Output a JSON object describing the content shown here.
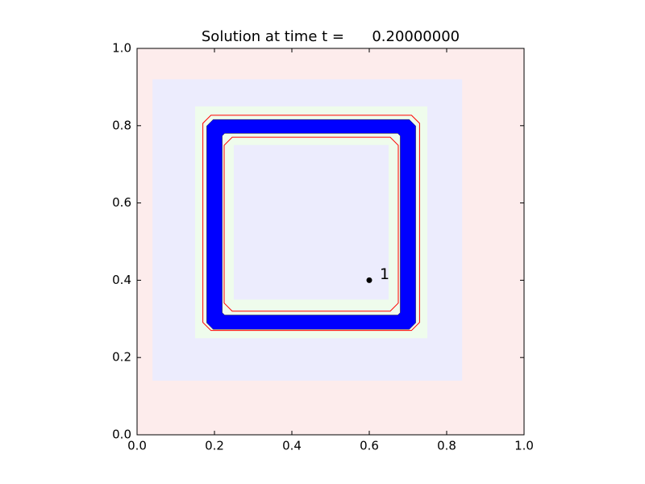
{
  "chart_data": {
    "type": "patches",
    "title": "Solution at time t =      0.20000000",
    "xlim": [
      0,
      1
    ],
    "ylim": [
      0,
      1
    ],
    "xticks": [
      {
        "value": 0,
        "label": "0.0"
      },
      0.2,
      0.4,
      0.6,
      0.8,
      {
        "value": 1,
        "label": "1.0"
      }
    ],
    "yticks": [
      {
        "value": 0,
        "label": "0.0"
      },
      0.2,
      0.4,
      0.6,
      0.8,
      {
        "value": 1,
        "label": "1.0"
      }
    ],
    "patches": [
      {
        "x": [
          0,
          1
        ],
        "y": [
          0,
          1
        ],
        "color": "#fdecec"
      },
      {
        "x": [
          0.04,
          0.84
        ],
        "y": [
          0.14,
          0.92
        ],
        "color": "#ececfd"
      },
      {
        "x": [
          0.15,
          0.75
        ],
        "y": [
          0.25,
          0.85
        ],
        "color": "#effcec"
      },
      {
        "x": [
          0.25,
          0.65
        ],
        "y": [
          0.35,
          0.75
        ],
        "color": "#ececfd"
      }
    ],
    "solution": {
      "outer_x": [
        0.18,
        0.72
      ],
      "outer_y": [
        0.273,
        0.816
      ],
      "inner_x": [
        0.22,
        0.68
      ],
      "inner_y": [
        0.31,
        0.78
      ],
      "color": "#0000ff"
    },
    "contours": [
      {
        "x": [
          0.17,
          0.73
        ],
        "y": [
          0.27,
          0.827
        ],
        "color": "#ff0000"
      },
      {
        "x": [
          0.225,
          0.675
        ],
        "y": [
          0.32,
          0.77
        ],
        "color": "#ff0000"
      }
    ],
    "gauges": [
      {
        "x": 0.6,
        "y": 0.4,
        "label": "1",
        "color": "#000000"
      }
    ]
  }
}
